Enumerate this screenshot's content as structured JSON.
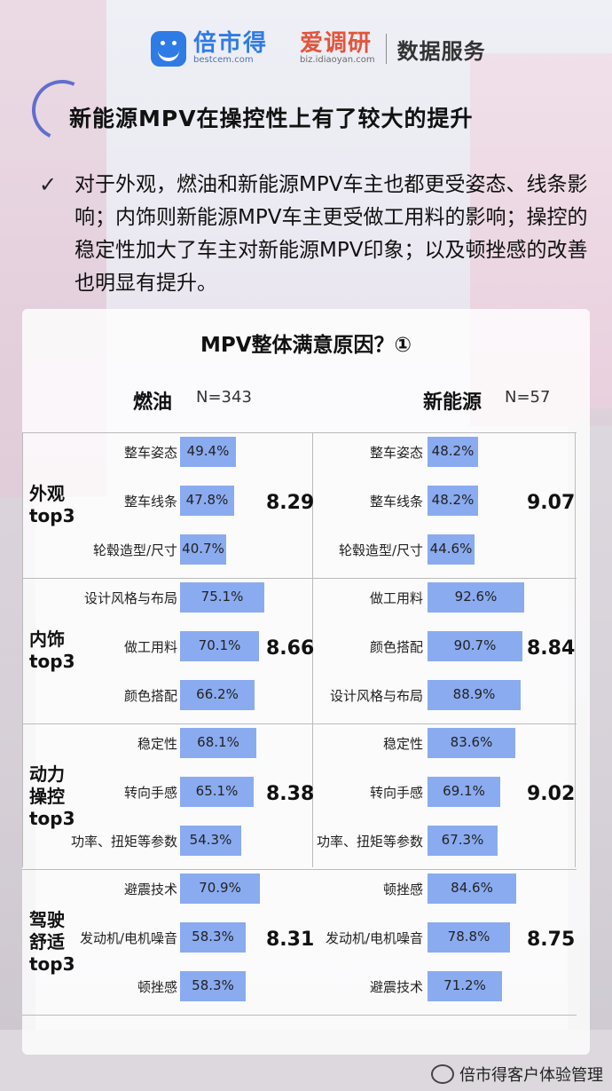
{
  "header": {
    "bestcem_name": "倍市得",
    "bestcem_url": "bestcem.com",
    "idiaoyan_name": "爱调研",
    "idiaoyan_url": "biz.idiaoyan.com",
    "service": "数据服务"
  },
  "page_title": "新能源MPV在操控性上有了较大的提升",
  "summary": "对于外观，燃油和新能源MPV车主也都更受姿态、线条影响；内饰则新能源MPV车主更受做工用料的影响；操控的稳定性加大了车主对新能源MPV印象；以及顿挫感的改善也明显有提升。",
  "footer": "倍市得客户体验管理",
  "colors": {
    "bar": "#8aabf0",
    "accent": "#2f7be6",
    "brand_red": "#e2553c"
  },
  "chart_data": {
    "type": "bar",
    "title": "MPV整体满意原因？①",
    "columns": [
      {
        "name": "燃油",
        "n": "N=343"
      },
      {
        "name": "新能源",
        "n": "N=57"
      }
    ],
    "groups": [
      {
        "category": "外观\ntop3",
        "fuel": {
          "score": "8.29",
          "items": [
            {
              "label": "整车姿态",
              "value": 49.4
            },
            {
              "label": "整车线条",
              "value": 47.8
            },
            {
              "label": "轮毂造型/尺寸",
              "value": 40.7
            }
          ]
        },
        "ev": {
          "score": "9.07",
          "items": [
            {
              "label": "整车姿态",
              "value": 48.2
            },
            {
              "label": "整车线条",
              "value": 48.2
            },
            {
              "label": "轮毂造型/尺寸",
              "value": 44.6
            }
          ]
        }
      },
      {
        "category": "内饰\ntop3",
        "fuel": {
          "score": "8.66",
          "items": [
            {
              "label": "设计风格与布局",
              "value": 75.1
            },
            {
              "label": "做工用料",
              "value": 70.1
            },
            {
              "label": "颜色搭配",
              "value": 66.2
            }
          ]
        },
        "ev": {
          "score": "8.84",
          "items": [
            {
              "label": "做工用料",
              "value": 92.6
            },
            {
              "label": "颜色搭配",
              "value": 90.7
            },
            {
              "label": "设计风格与布局",
              "value": 88.9
            }
          ]
        }
      },
      {
        "category": "动力\n操控\ntop3",
        "fuel": {
          "score": "8.38",
          "items": [
            {
              "label": "稳定性",
              "value": 68.1
            },
            {
              "label": "转向手感",
              "value": 65.1
            },
            {
              "label": "功率、扭矩等参数",
              "value": 54.3
            }
          ]
        },
        "ev": {
          "score": "9.02",
          "items": [
            {
              "label": "稳定性",
              "value": 83.6
            },
            {
              "label": "转向手感",
              "value": 69.1
            },
            {
              "label": "功率、扭矩等参数",
              "value": 67.3
            }
          ]
        }
      },
      {
        "category": "驾驶\n舒适\ntop3",
        "fuel": {
          "score": "8.31",
          "items": [
            {
              "label": "避震技术",
              "value": 70.9
            },
            {
              "label": "发动机/电机噪音",
              "value": 58.3
            },
            {
              "label": "顿挫感",
              "value": 58.3
            }
          ]
        },
        "ev": {
          "score": "8.75",
          "items": [
            {
              "label": "顿挫感",
              "value": 84.6
            },
            {
              "label": "发动机/电机噪音",
              "value": 78.8
            },
            {
              "label": "避震技术",
              "value": 71.2
            }
          ]
        }
      }
    ]
  }
}
